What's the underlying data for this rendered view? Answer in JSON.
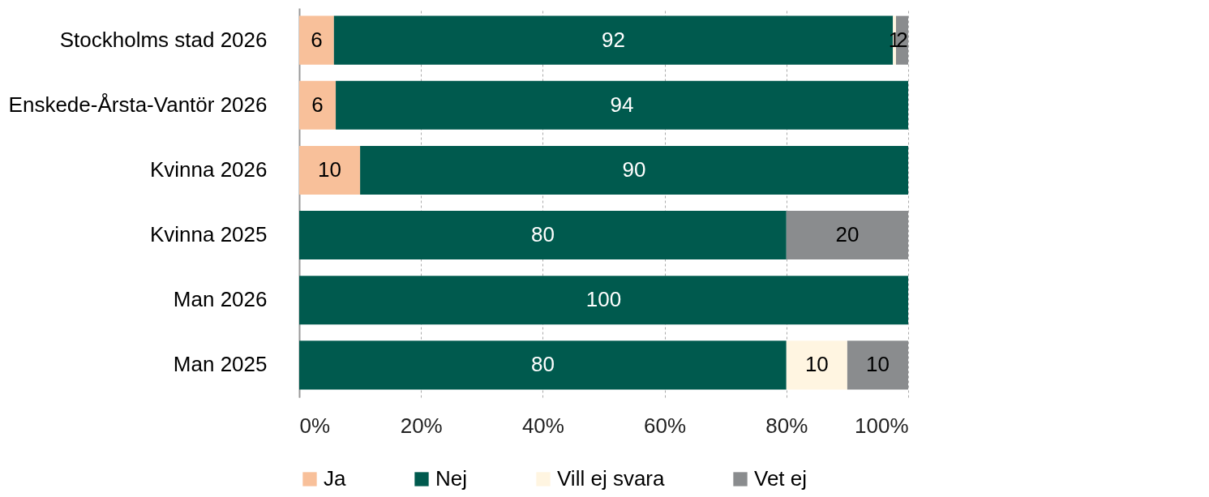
{
  "chart_data": {
    "type": "bar",
    "orientation": "horizontal",
    "stacked": true,
    "categories": [
      "Stockholms stad 2026",
      "Enskede-Årsta-Vantör 2026",
      "Kvinna 2026",
      "Kvinna 2025",
      "Man 2026",
      "Man 2025"
    ],
    "series": [
      {
        "name": "Ja",
        "color": "#f8c09a",
        "values": [
          5.7,
          6,
          10,
          null,
          null,
          null
        ],
        "value_labels": [
          "6",
          "6",
          "10",
          null,
          null,
          null
        ]
      },
      {
        "name": "Nej",
        "color": "#005a4e",
        "values": [
          91.8,
          94,
          90,
          80,
          100,
          80
        ],
        "value_labels": [
          "92",
          "94",
          "90",
          "80",
          "100",
          "80"
        ]
      },
      {
        "name": "Vill ej svara",
        "color": "#fff5e1",
        "values": [
          0.5,
          null,
          null,
          null,
          null,
          10
        ],
        "value_labels": [
          "1",
          null,
          null,
          null,
          null,
          "10"
        ]
      },
      {
        "name": "Vet ej",
        "color": "#8a8c8e",
        "values": [
          2,
          null,
          null,
          20,
          null,
          10
        ],
        "value_labels": [
          "2",
          null,
          null,
          "20",
          null,
          "10"
        ]
      }
    ],
    "xlim": [
      0,
      100
    ],
    "xticks": [
      {
        "value": 0,
        "label": "0%"
      },
      {
        "value": 20,
        "label": "20%"
      },
      {
        "value": 40,
        "label": "40%"
      },
      {
        "value": 60,
        "label": "60%"
      },
      {
        "value": 80,
        "label": "80%"
      },
      {
        "value": 100,
        "label": "100%"
      }
    ],
    "grid": "x",
    "legend": "bottom"
  }
}
